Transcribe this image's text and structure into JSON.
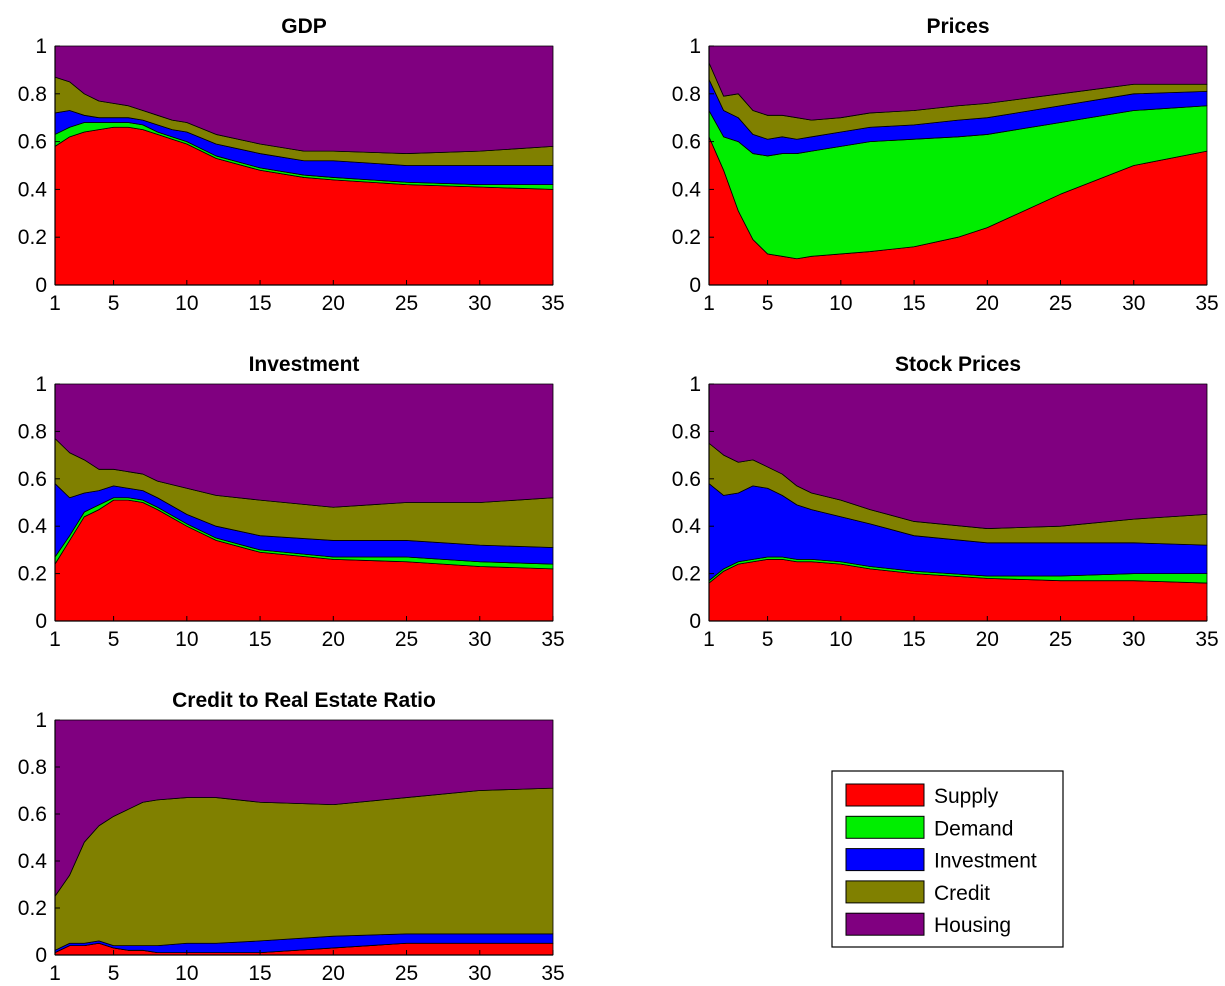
{
  "series_colors": {
    "Supply": "#ff0000",
    "Demand": "#00ee00",
    "Investment": "#0000ff",
    "Credit": "#808000",
    "Housing": "#800080"
  },
  "legend": [
    "Supply",
    "Demand",
    "Investment",
    "Credit",
    "Housing"
  ],
  "chart_data": [
    {
      "type": "area",
      "stacked": true,
      "title": "GDP",
      "x": [
        1,
        2,
        3,
        4,
        5,
        6,
        7,
        8,
        9,
        10,
        12,
        15,
        18,
        20,
        25,
        30,
        35
      ],
      "xticks": [
        1,
        5,
        10,
        15,
        20,
        25,
        30,
        35
      ],
      "yticks": [
        "0",
        "0.2",
        "0.4",
        "0.6",
        "0.8",
        "1"
      ],
      "xlim": [
        1,
        35
      ],
      "ylim": [
        0,
        1
      ],
      "series": [
        {
          "name": "Supply",
          "values": [
            0.58,
            0.62,
            0.64,
            0.65,
            0.66,
            0.66,
            0.65,
            0.63,
            0.61,
            0.59,
            0.53,
            0.48,
            0.45,
            0.44,
            0.42,
            0.41,
            0.4
          ]
        },
        {
          "name": "Demand",
          "values": [
            0.05,
            0.04,
            0.04,
            0.03,
            0.02,
            0.02,
            0.02,
            0.01,
            0.01,
            0.01,
            0.01,
            0.01,
            0.01,
            0.01,
            0.01,
            0.01,
            0.02
          ]
        },
        {
          "name": "Investment",
          "values": [
            0.09,
            0.07,
            0.03,
            0.02,
            0.02,
            0.02,
            0.02,
            0.03,
            0.03,
            0.04,
            0.05,
            0.06,
            0.06,
            0.07,
            0.07,
            0.08,
            0.08
          ]
        },
        {
          "name": "Credit",
          "values": [
            0.15,
            0.12,
            0.09,
            0.07,
            0.06,
            0.05,
            0.04,
            0.04,
            0.04,
            0.04,
            0.04,
            0.04,
            0.04,
            0.04,
            0.05,
            0.06,
            0.08
          ]
        },
        {
          "name": "Housing",
          "values": [
            0.13,
            0.15,
            0.2,
            0.23,
            0.24,
            0.25,
            0.27,
            0.29,
            0.31,
            0.32,
            0.37,
            0.41,
            0.44,
            0.44,
            0.45,
            0.44,
            0.42
          ]
        }
      ]
    },
    {
      "type": "area",
      "stacked": true,
      "title": "Prices",
      "x": [
        1,
        2,
        3,
        4,
        5,
        6,
        7,
        8,
        10,
        12,
        15,
        18,
        20,
        25,
        30,
        35
      ],
      "xticks": [
        1,
        5,
        10,
        15,
        20,
        25,
        30,
        35
      ],
      "yticks": [
        "0",
        "0.2",
        "0.4",
        "0.6",
        "0.8",
        "1"
      ],
      "xlim": [
        1,
        35
      ],
      "ylim": [
        0,
        1
      ],
      "series": [
        {
          "name": "Supply",
          "values": [
            0.62,
            0.48,
            0.31,
            0.19,
            0.13,
            0.12,
            0.11,
            0.12,
            0.13,
            0.14,
            0.16,
            0.2,
            0.24,
            0.38,
            0.5,
            0.56
          ]
        },
        {
          "name": "Demand",
          "values": [
            0.11,
            0.14,
            0.29,
            0.36,
            0.41,
            0.43,
            0.44,
            0.44,
            0.45,
            0.46,
            0.45,
            0.42,
            0.39,
            0.3,
            0.23,
            0.19
          ]
        },
        {
          "name": "Investment",
          "values": [
            0.13,
            0.11,
            0.1,
            0.08,
            0.07,
            0.07,
            0.06,
            0.06,
            0.06,
            0.06,
            0.06,
            0.07,
            0.07,
            0.07,
            0.07,
            0.06
          ]
        },
        {
          "name": "Credit",
          "values": [
            0.07,
            0.06,
            0.1,
            0.1,
            0.1,
            0.09,
            0.09,
            0.07,
            0.06,
            0.06,
            0.06,
            0.06,
            0.06,
            0.05,
            0.04,
            0.03
          ]
        },
        {
          "name": "Housing",
          "values": [
            0.07,
            0.21,
            0.2,
            0.27,
            0.29,
            0.29,
            0.3,
            0.31,
            0.3,
            0.28,
            0.27,
            0.25,
            0.24,
            0.2,
            0.16,
            0.16
          ]
        }
      ]
    },
    {
      "type": "area",
      "stacked": true,
      "title": "Investment",
      "x": [
        1,
        2,
        3,
        4,
        5,
        6,
        7,
        8,
        10,
        12,
        15,
        20,
        25,
        30,
        35
      ],
      "xticks": [
        1,
        5,
        10,
        15,
        20,
        25,
        30,
        35
      ],
      "yticks": [
        "0",
        "0.2",
        "0.4",
        "0.6",
        "0.8",
        "1"
      ],
      "xlim": [
        1,
        35
      ],
      "ylim": [
        0,
        1
      ],
      "series": [
        {
          "name": "Supply",
          "values": [
            0.24,
            0.34,
            0.44,
            0.47,
            0.51,
            0.51,
            0.5,
            0.47,
            0.4,
            0.34,
            0.29,
            0.26,
            0.25,
            0.23,
            0.22
          ]
        },
        {
          "name": "Demand",
          "values": [
            0.03,
            0.02,
            0.02,
            0.02,
            0.01,
            0.01,
            0.01,
            0.01,
            0.01,
            0.01,
            0.01,
            0.01,
            0.02,
            0.02,
            0.02
          ]
        },
        {
          "name": "Investment",
          "values": [
            0.31,
            0.16,
            0.08,
            0.06,
            0.05,
            0.04,
            0.04,
            0.04,
            0.04,
            0.05,
            0.06,
            0.07,
            0.07,
            0.07,
            0.07
          ]
        },
        {
          "name": "Credit",
          "values": [
            0.19,
            0.19,
            0.14,
            0.09,
            0.07,
            0.07,
            0.07,
            0.07,
            0.11,
            0.13,
            0.15,
            0.14,
            0.16,
            0.18,
            0.21
          ]
        },
        {
          "name": "Housing",
          "values": [
            0.23,
            0.29,
            0.32,
            0.36,
            0.36,
            0.37,
            0.38,
            0.41,
            0.44,
            0.47,
            0.49,
            0.52,
            0.5,
            0.5,
            0.48
          ]
        }
      ]
    },
    {
      "type": "area",
      "stacked": true,
      "title": "Stock Prices",
      "x": [
        1,
        2,
        3,
        4,
        5,
        6,
        7,
        8,
        10,
        12,
        15,
        20,
        25,
        30,
        35
      ],
      "xticks": [
        1,
        5,
        10,
        15,
        20,
        25,
        30,
        35
      ],
      "yticks": [
        "0",
        "0.2",
        "0.4",
        "0.6",
        "0.8",
        "1"
      ],
      "xlim": [
        1,
        35
      ],
      "ylim": [
        0,
        1
      ],
      "series": [
        {
          "name": "Supply",
          "values": [
            0.16,
            0.21,
            0.24,
            0.25,
            0.26,
            0.26,
            0.25,
            0.25,
            0.24,
            0.22,
            0.2,
            0.18,
            0.17,
            0.17,
            0.16
          ]
        },
        {
          "name": "Demand",
          "values": [
            0.01,
            0.01,
            0.01,
            0.01,
            0.01,
            0.01,
            0.01,
            0.01,
            0.01,
            0.01,
            0.01,
            0.01,
            0.02,
            0.03,
            0.04
          ]
        },
        {
          "name": "Investment",
          "values": [
            0.41,
            0.31,
            0.29,
            0.31,
            0.29,
            0.26,
            0.23,
            0.21,
            0.19,
            0.18,
            0.15,
            0.14,
            0.14,
            0.13,
            0.12
          ]
        },
        {
          "name": "Credit",
          "values": [
            0.17,
            0.17,
            0.13,
            0.11,
            0.09,
            0.09,
            0.08,
            0.07,
            0.07,
            0.06,
            0.06,
            0.06,
            0.07,
            0.1,
            0.13
          ]
        },
        {
          "name": "Housing",
          "values": [
            0.25,
            0.3,
            0.33,
            0.32,
            0.35,
            0.38,
            0.43,
            0.46,
            0.49,
            0.53,
            0.58,
            0.61,
            0.6,
            0.57,
            0.55
          ]
        }
      ]
    },
    {
      "type": "area",
      "stacked": true,
      "title": "Credit to Real Estate Ratio",
      "x": [
        1,
        2,
        3,
        4,
        5,
        6,
        7,
        8,
        10,
        12,
        15,
        20,
        25,
        30,
        35
      ],
      "xticks": [
        1,
        5,
        10,
        15,
        20,
        25,
        30,
        35
      ],
      "yticks": [
        "0",
        "0.2",
        "0.4",
        "0.6",
        "0.8",
        "1"
      ],
      "xlim": [
        1,
        35
      ],
      "ylim": [
        0,
        1
      ],
      "series": [
        {
          "name": "Supply",
          "values": [
            0.01,
            0.04,
            0.04,
            0.05,
            0.03,
            0.02,
            0.02,
            0.01,
            0.01,
            0.01,
            0.01,
            0.03,
            0.05,
            0.05,
            0.05
          ]
        },
        {
          "name": "Demand",
          "values": [
            0.0,
            0.0,
            0.0,
            0.0,
            0.0,
            0.0,
            0.0,
            0.0,
            0.0,
            0.0,
            0.0,
            0.0,
            0.0,
            0.0,
            0.0
          ]
        },
        {
          "name": "Investment",
          "values": [
            0.01,
            0.01,
            0.01,
            0.01,
            0.01,
            0.02,
            0.02,
            0.03,
            0.04,
            0.04,
            0.05,
            0.05,
            0.04,
            0.04,
            0.04
          ]
        },
        {
          "name": "Credit",
          "values": [
            0.23,
            0.29,
            0.43,
            0.49,
            0.55,
            0.58,
            0.61,
            0.62,
            0.62,
            0.62,
            0.59,
            0.56,
            0.58,
            0.61,
            0.62
          ]
        },
        {
          "name": "Housing",
          "values": [
            0.75,
            0.66,
            0.52,
            0.45,
            0.41,
            0.38,
            0.35,
            0.34,
            0.33,
            0.33,
            0.35,
            0.36,
            0.33,
            0.3,
            0.29
          ]
        }
      ]
    }
  ]
}
